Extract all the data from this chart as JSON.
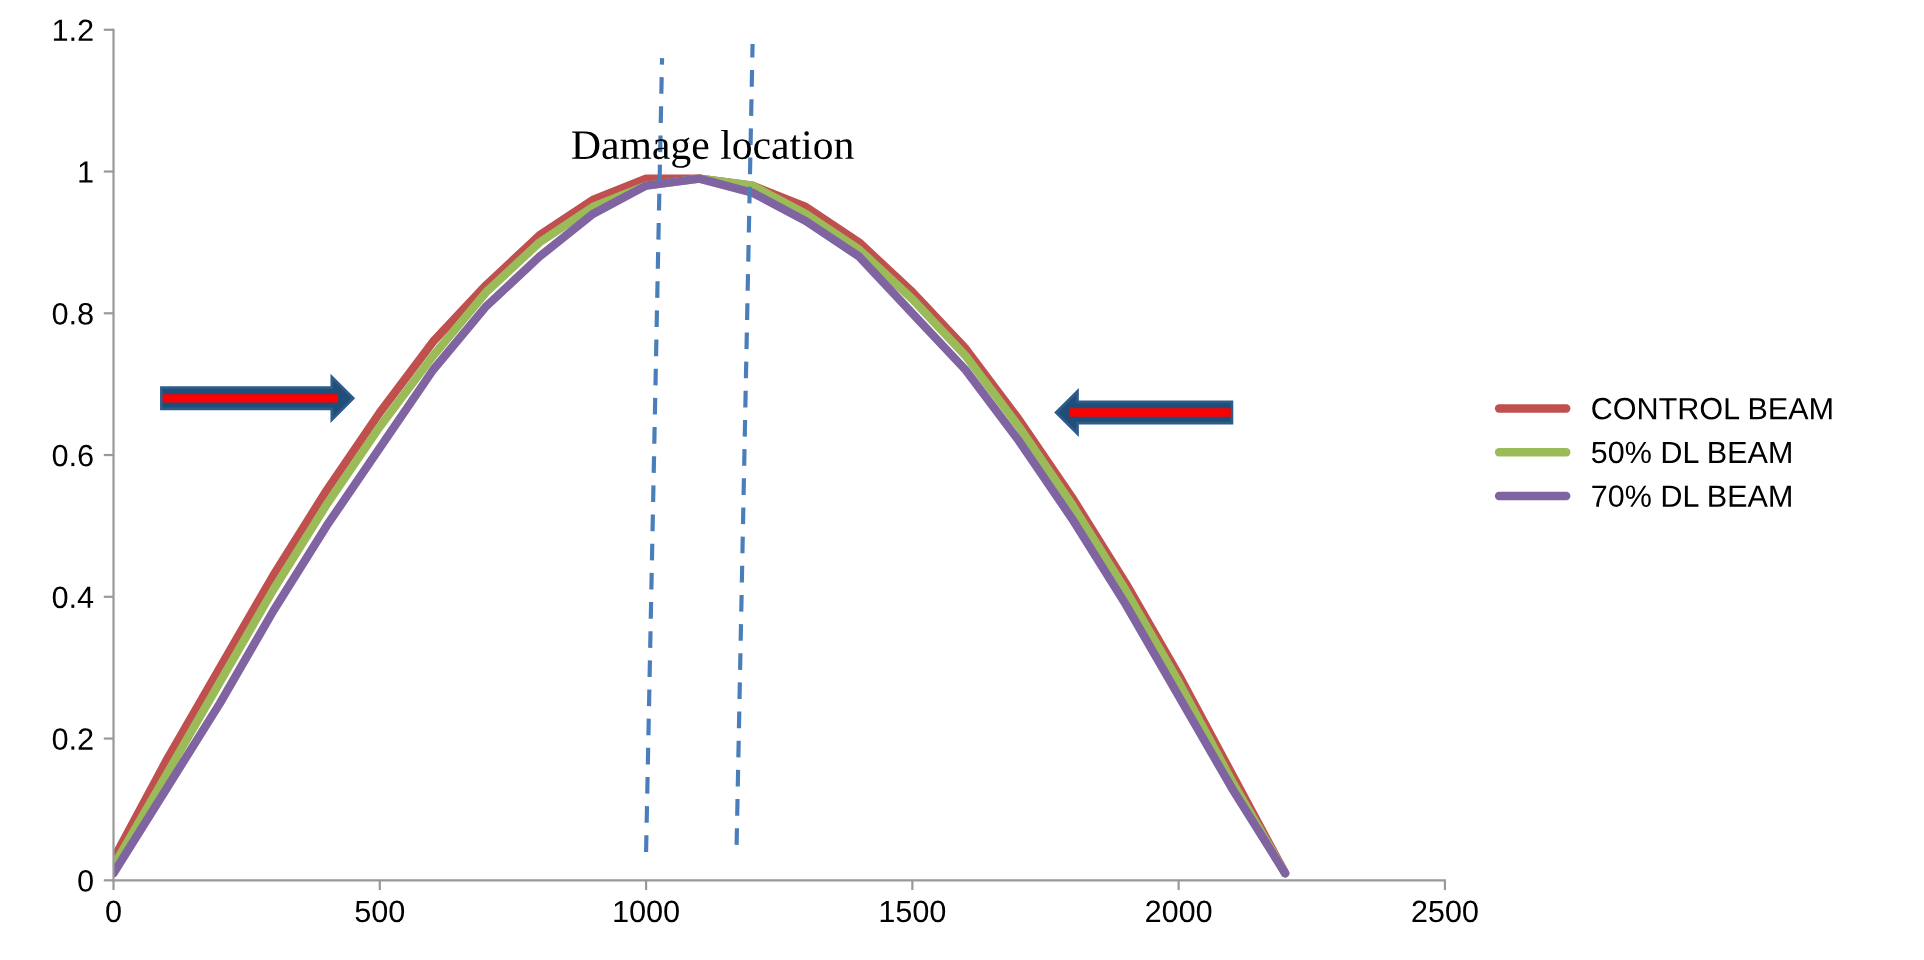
{
  "chart_data": {
    "type": "line",
    "x": [
      0,
      100,
      200,
      300,
      400,
      500,
      600,
      700,
      800,
      900,
      1000,
      1100,
      1200,
      1300,
      1400,
      1500,
      1600,
      1700,
      1800,
      1900,
      2000,
      2100,
      2200
    ],
    "series": [
      {
        "name": "CONTROL BEAM",
        "color": "#c0504d",
        "values": [
          0.03,
          0.17,
          0.3,
          0.43,
          0.55,
          0.66,
          0.76,
          0.84,
          0.91,
          0.96,
          0.99,
          0.99,
          0.98,
          0.95,
          0.9,
          0.83,
          0.75,
          0.65,
          0.54,
          0.42,
          0.29,
          0.15,
          0.01
        ]
      },
      {
        "name": "50% DL BEAM",
        "color": "#9bbb59",
        "values": [
          0.02,
          0.15,
          0.28,
          0.41,
          0.53,
          0.64,
          0.74,
          0.83,
          0.9,
          0.95,
          0.98,
          0.99,
          0.98,
          0.94,
          0.89,
          0.82,
          0.74,
          0.64,
          0.53,
          0.41,
          0.28,
          0.14,
          0.01
        ]
      },
      {
        "name": "70% DL BEAM",
        "color": "#8064a2",
        "values": [
          0.01,
          0.13,
          0.25,
          0.38,
          0.5,
          0.61,
          0.72,
          0.81,
          0.88,
          0.94,
          0.98,
          0.99,
          0.97,
          0.93,
          0.88,
          0.8,
          0.72,
          0.62,
          0.51,
          0.39,
          0.26,
          0.13,
          0.01
        ]
      },
      {
        "color": "#4a7ebb",
        "line_style": "dashed",
        "x": [
          1000,
          1030
        ],
        "values": [
          0.04,
          1.16
        ]
      },
      {
        "color": "#4a7ebb",
        "line_style": "dashed",
        "x": [
          1170,
          1200
        ],
        "values": [
          0.05,
          1.18
        ]
      }
    ],
    "annotations": [
      "Damage location"
    ],
    "xlim": [
      0,
      2500
    ],
    "xticks": [
      0,
      500,
      1000,
      1500,
      2000,
      2500
    ],
    "ylim": [
      0,
      1.2
    ],
    "yticks": [
      0,
      0.2,
      0.4,
      0.6,
      0.8,
      1,
      1.2
    ],
    "legend": "right",
    "grid": false
  }
}
